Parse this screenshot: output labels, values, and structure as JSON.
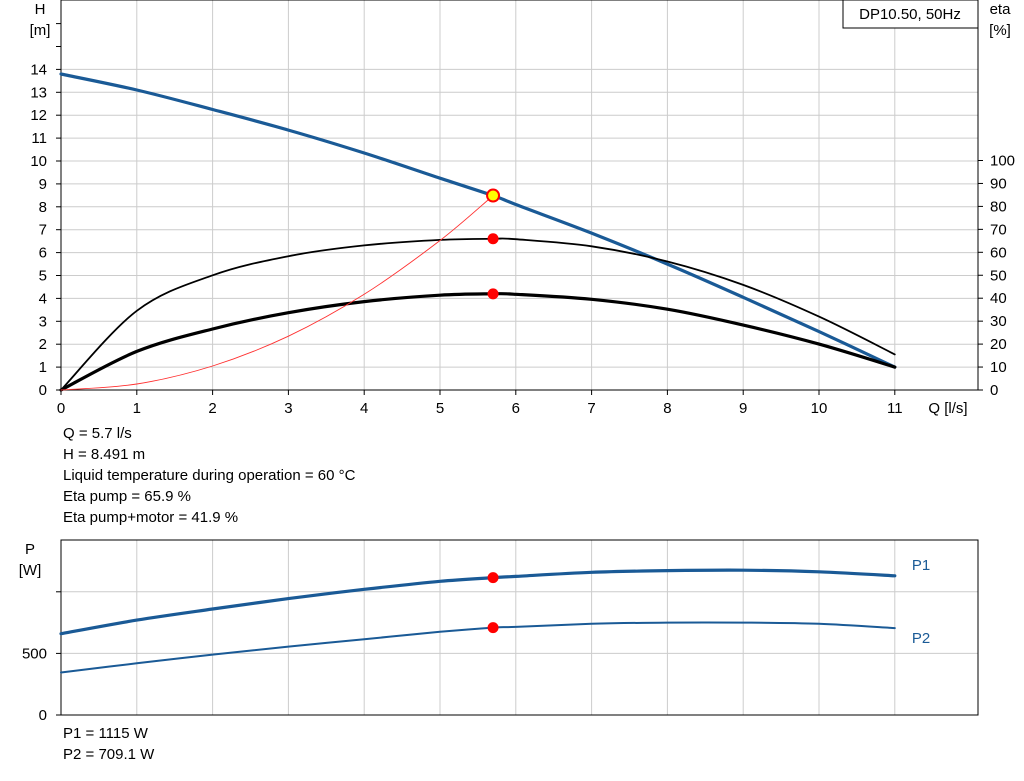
{
  "colors": {
    "head_curve": "#1a5a96",
    "efficiency_curve": "#000000",
    "system_curve": "#ff3030",
    "duty_point": "#ff0000",
    "duty_point_head_fill": "#ffff00",
    "grid": "#cccccc",
    "label_blue": "#1a5a96"
  },
  "main_chart": {
    "legend": "DP10.50, 50Hz",
    "y_left_label": [
      "H",
      "[m]"
    ],
    "y_right_label": [
      "eta",
      "[%]"
    ],
    "x_label": "Q [l/s]",
    "x_ticks": [
      "0",
      "1",
      "2",
      "3",
      "4",
      "5",
      "6",
      "7",
      "8",
      "9",
      "10",
      "11"
    ],
    "y_left_ticks": [
      "0",
      "1",
      "2",
      "3",
      "4",
      "5",
      "6",
      "7",
      "8",
      "9",
      "10",
      "11",
      "12",
      "13",
      "14"
    ],
    "y_right_ticks": [
      "0",
      "10",
      "20",
      "30",
      "40",
      "50",
      "60",
      "70",
      "80",
      "90",
      "100"
    ]
  },
  "power_chart": {
    "y_label": [
      "P",
      "[W]"
    ],
    "y_ticks": [
      "0",
      "500"
    ],
    "series_labels": [
      "P1",
      "P2"
    ]
  },
  "readout": {
    "q": "Q = 5.7 l/s",
    "h": "H = 8.491 m",
    "temp": "Liquid temperature during operation = 60 °C",
    "eta_pump": "Eta pump = 65.9 %",
    "eta_total": "Eta pump+motor = 41.9 %",
    "p1": "P1 = 1115 W",
    "p2": "P2 = 709.1 W"
  },
  "chart_data": [
    {
      "type": "line",
      "xlabel": "Q [l/s]",
      "ylabel": "H [m]",
      "y2label": "eta [%]",
      "xlim": [
        0,
        11
      ],
      "ylim": [
        0,
        14
      ],
      "y2lim": [
        0,
        100
      ],
      "grid": true,
      "legend_position": "top-right",
      "series": [
        {
          "name": "DP10.50, 50Hz",
          "axis": "H",
          "x": [
            0,
            1,
            2,
            3,
            4,
            5,
            5.7,
            6,
            7,
            8,
            9,
            10,
            11
          ],
          "y": [
            13.8,
            13.1,
            12.25,
            11.35,
            10.35,
            9.25,
            8.491,
            8.1,
            6.85,
            5.5,
            4.05,
            2.55,
            1.0
          ]
        },
        {
          "axis": "eta",
          "x": [
            0,
            1,
            2,
            3,
            4,
            5,
            5.7,
            6,
            7,
            8,
            9,
            10,
            11
          ],
          "y": [
            0,
            34.5,
            50.0,
            58.3,
            63.0,
            65.4,
            65.9,
            65.7,
            62.6,
            56.0,
            45.8,
            32.0,
            15.5
          ]
        },
        {
          "axis": "eta",
          "x": [
            0,
            1,
            2,
            3,
            4,
            5,
            5.7,
            6,
            7,
            8,
            9,
            10,
            11
          ],
          "y": [
            0,
            16.8,
            26.6,
            33.7,
            38.5,
            41.3,
            41.9,
            41.7,
            39.5,
            35.2,
            28.3,
            20.0,
            10.0
          ]
        },
        {
          "axis": "H",
          "x": [
            0,
            1,
            2,
            3,
            4,
            5,
            5.7
          ],
          "y": [
            0,
            0.26,
            1.05,
            2.35,
            4.18,
            6.53,
            8.491
          ]
        }
      ],
      "duty_points": [
        {
          "x": 5.7,
          "y": 8.491,
          "axis": "H"
        },
        {
          "x": 5.7,
          "y": 65.9,
          "axis": "eta"
        },
        {
          "x": 5.7,
          "y": 41.9,
          "axis": "eta"
        }
      ]
    },
    {
      "type": "line",
      "xlabel": "Q [l/s]",
      "ylabel": "P [W]",
      "xlim": [
        0,
        11
      ],
      "ylim": [
        0,
        1250
      ],
      "grid": true,
      "series": [
        {
          "name": "P1",
          "x": [
            0,
            1,
            2,
            3,
            4,
            5,
            5.7,
            6,
            7,
            8,
            9,
            10,
            11
          ],
          "y": [
            660,
            770,
            860,
            945,
            1020,
            1085,
            1115,
            1125,
            1158,
            1172,
            1175,
            1162,
            1130
          ]
        },
        {
          "name": "P2",
          "x": [
            0,
            1,
            2,
            3,
            4,
            5,
            5.7,
            6,
            7,
            8,
            9,
            10,
            11
          ],
          "y": [
            345,
            420,
            490,
            555,
            615,
            675,
            709.1,
            715,
            740,
            750,
            750,
            740,
            705
          ]
        }
      ],
      "duty_points": [
        {
          "x": 5.7,
          "y": 1115
        },
        {
          "x": 5.7,
          "y": 709.1
        }
      ]
    }
  ]
}
